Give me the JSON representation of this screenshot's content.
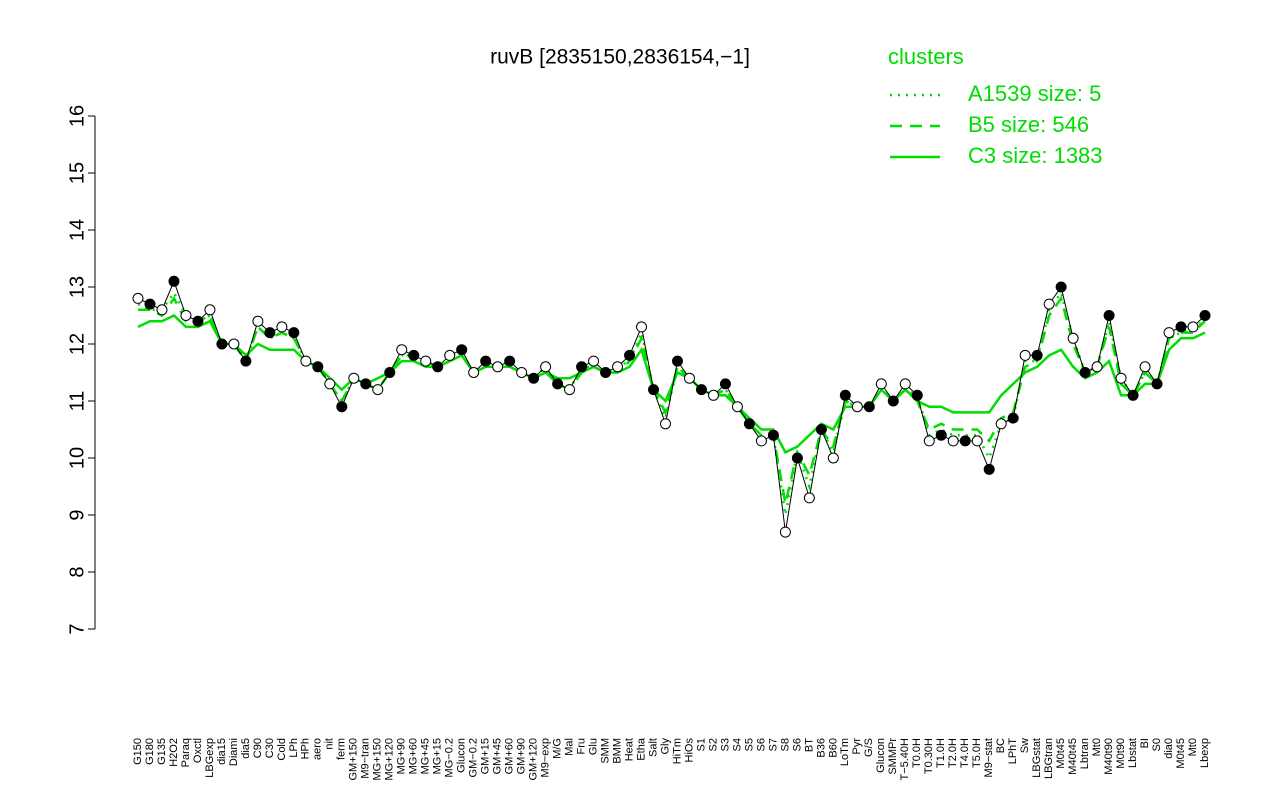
{
  "chart_data": {
    "type": "line",
    "title": "ruvB [2835150,2836154,−1]",
    "legend_title": "clusters",
    "ylim": [
      7,
      16
    ],
    "yticks": [
      7,
      8,
      9,
      10,
      11,
      12,
      13,
      14,
      15,
      16
    ],
    "categories": [
      "G150",
      "G180",
      "G135",
      "H2O2",
      "Paraq",
      "Oxctl",
      "LBGexp",
      "dia15",
      "Diami",
      "dia5",
      "C90",
      "C30",
      "Cold",
      "LPh",
      "HPh",
      "aero",
      "nit",
      "ferm",
      "GM+150",
      "M9−tran",
      "MG+150",
      "MG+120",
      "MG+90",
      "MG+60",
      "MG+45",
      "MG+15",
      "MG−0.2",
      "Glucon",
      "GM−0.2",
      "GM+15",
      "GM+45",
      "GM+60",
      "GM+90",
      "GM+120",
      "M9−exp",
      "M/G",
      "Mal",
      "Fru",
      "Glu",
      "SMM",
      "BMM",
      "Heat",
      "Etha",
      "Salt",
      "Gly",
      "HiTm",
      "HiOs",
      "S1",
      "S2",
      "S3",
      "S4",
      "S5",
      "S6",
      "S7",
      "S8",
      "S6",
      "BT",
      "B36",
      "B60",
      "LoTm",
      "Pyr",
      "G/S",
      "Glucon",
      "SMMPr",
      "T−5.40H",
      "T0.0H",
      "T0.30H",
      "T1.0H",
      "T2.0H",
      "T4.0H",
      "T5.0H",
      "M9−stat",
      "BC",
      "LPhT",
      "Sw",
      "LBGstat",
      "LBGtran",
      "M0t45",
      "M40t45",
      "Lbtran",
      "Mt0",
      "M40t90",
      "M0t90",
      "Lbstat",
      "BI",
      "S0",
      "dia0",
      "M0t45",
      "Mt0",
      "Lbexp"
    ],
    "points": {
      "color": "#000000",
      "values": [
        12.8,
        12.7,
        12.6,
        13.1,
        12.5,
        12.4,
        12.6,
        12.0,
        12.0,
        11.7,
        12.4,
        12.2,
        12.3,
        12.2,
        11.7,
        11.6,
        11.3,
        10.9,
        11.4,
        11.3,
        11.2,
        11.5,
        11.9,
        11.8,
        11.7,
        11.6,
        11.8,
        11.9,
        11.5,
        11.7,
        11.6,
        11.7,
        11.5,
        11.4,
        11.6,
        11.3,
        11.2,
        11.6,
        11.7,
        11.5,
        11.6,
        11.8,
        12.3,
        11.2,
        10.6,
        11.7,
        11.4,
        11.2,
        11.1,
        11.3,
        10.9,
        10.6,
        10.3,
        10.4,
        8.7,
        10.0,
        9.3,
        10.5,
        10.0,
        11.1,
        10.9,
        10.9,
        11.3,
        11.0,
        11.3,
        11.1,
        10.3,
        10.4,
        10.3,
        10.3,
        10.3,
        9.8,
        10.6,
        10.7,
        11.8,
        11.8,
        12.7,
        13.0,
        12.1,
        11.5,
        11.6,
        12.5,
        11.4,
        11.1,
        11.6,
        11.3,
        12.2,
        12.3,
        12.3,
        12.5
      ]
    },
    "series": [
      {
        "name": "A1539 size: 5",
        "color": "#00dd00",
        "dash": "dotted",
        "values": [
          12.7,
          12.6,
          12.6,
          12.9,
          12.5,
          12.4,
          12.5,
          12.0,
          12.0,
          11.7,
          12.3,
          12.1,
          12.2,
          12.1,
          11.7,
          11.6,
          11.3,
          11.0,
          11.4,
          11.3,
          11.2,
          11.5,
          11.8,
          11.8,
          11.7,
          11.6,
          11.7,
          11.8,
          11.5,
          11.6,
          11.6,
          11.6,
          11.5,
          11.4,
          11.6,
          11.3,
          11.2,
          11.6,
          11.6,
          11.5,
          11.6,
          11.7,
          12.2,
          11.2,
          10.7,
          11.6,
          11.4,
          11.2,
          11.1,
          11.2,
          10.9,
          10.6,
          10.4,
          10.4,
          9.0,
          10.1,
          9.5,
          10.5,
          10.1,
          11.0,
          10.9,
          10.9,
          11.2,
          11.0,
          11.2,
          11.1,
          10.4,
          10.5,
          10.4,
          10.4,
          10.4,
          10.0,
          10.6,
          10.7,
          11.7,
          11.7,
          12.6,
          12.9,
          12.1,
          11.5,
          11.6,
          12.4,
          11.4,
          11.1,
          11.5,
          11.3,
          12.1,
          12.2,
          12.3,
          12.4
        ]
      },
      {
        "name": "B5 size: 546",
        "color": "#00dd00",
        "dash": "dashed",
        "values": [
          12.6,
          12.6,
          12.5,
          12.8,
          12.4,
          12.4,
          12.5,
          12.0,
          12.0,
          11.7,
          12.3,
          12.1,
          12.2,
          12.1,
          11.7,
          11.6,
          11.3,
          11.0,
          11.4,
          11.3,
          11.2,
          11.5,
          11.8,
          11.8,
          11.7,
          11.6,
          11.7,
          11.8,
          11.5,
          11.6,
          11.6,
          11.6,
          11.5,
          11.4,
          11.5,
          11.3,
          11.2,
          11.5,
          11.6,
          11.5,
          11.5,
          11.7,
          12.1,
          11.2,
          10.8,
          11.6,
          11.4,
          11.2,
          11.1,
          11.2,
          10.9,
          10.6,
          10.4,
          10.4,
          9.2,
          10.1,
          9.7,
          10.5,
          10.2,
          11.0,
          10.9,
          10.9,
          11.2,
          11.0,
          11.2,
          11.0,
          10.5,
          10.6,
          10.5,
          10.5,
          10.5,
          10.3,
          10.7,
          10.8,
          11.6,
          11.7,
          12.5,
          12.8,
          12.0,
          11.5,
          11.6,
          12.3,
          11.3,
          11.1,
          11.5,
          11.3,
          12.1,
          12.2,
          12.2,
          12.4
        ]
      },
      {
        "name": "C3 size: 1383",
        "color": "#00dd00",
        "dash": "solid",
        "values": [
          12.3,
          12.4,
          12.4,
          12.5,
          12.3,
          12.3,
          12.4,
          12.0,
          12.0,
          11.8,
          12.0,
          11.9,
          11.9,
          11.9,
          11.7,
          11.6,
          11.4,
          11.2,
          11.4,
          11.3,
          11.4,
          11.5,
          11.7,
          11.7,
          11.6,
          11.6,
          11.7,
          11.8,
          11.5,
          11.6,
          11.6,
          11.6,
          11.5,
          11.4,
          11.5,
          11.4,
          11.4,
          11.5,
          11.6,
          11.5,
          11.5,
          11.6,
          11.9,
          11.2,
          11.0,
          11.5,
          11.4,
          11.2,
          11.1,
          11.1,
          10.9,
          10.7,
          10.5,
          10.5,
          10.1,
          10.2,
          10.4,
          10.6,
          10.5,
          10.9,
          10.9,
          10.9,
          11.2,
          11.0,
          11.2,
          11.0,
          10.9,
          10.9,
          10.8,
          10.8,
          10.8,
          10.8,
          11.1,
          11.3,
          11.5,
          11.6,
          11.8,
          11.9,
          11.6,
          11.4,
          11.5,
          11.7,
          11.1,
          11.1,
          11.3,
          11.3,
          11.9,
          12.1,
          12.1,
          12.2
        ]
      }
    ]
  }
}
